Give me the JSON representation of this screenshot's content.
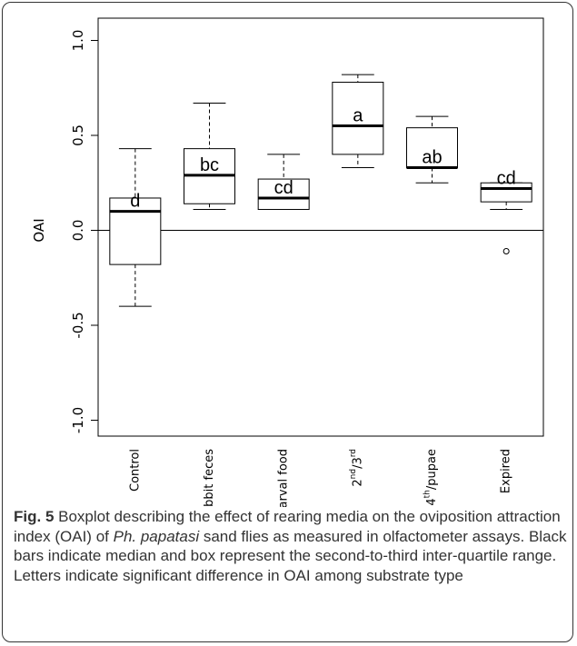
{
  "chart_data": {
    "type": "box",
    "ylabel": "OAI",
    "ylim": [
      -1.1,
      1.1
    ],
    "y_ticks": [
      "1.0",
      "0.5",
      "0.0",
      "-0.5",
      "-1.0"
    ],
    "y_tick_values": [
      1.0,
      0.5,
      0.0,
      -0.5,
      -1.0
    ],
    "reference_line_y": 0.0,
    "categories": [
      "Control",
      "Rabbit feces",
      "Larval food",
      "2nd/3rd",
      "4th/pupae",
      "Expired"
    ],
    "boxes": [
      {
        "category": "Control",
        "whisker_low": -0.4,
        "q1": -0.18,
        "median": 0.1,
        "q3": 0.17,
        "whisker_high": 0.43,
        "outliers": [],
        "letter": "d"
      },
      {
        "category": "Rabbit feces",
        "whisker_low": 0.11,
        "q1": 0.14,
        "median": 0.29,
        "q3": 0.43,
        "whisker_high": 0.67,
        "outliers": [],
        "letter": "bc"
      },
      {
        "category": "Larval food",
        "whisker_low": 0.11,
        "q1": 0.11,
        "median": 0.17,
        "q3": 0.27,
        "whisker_high": 0.4,
        "outliers": [],
        "letter": "cd"
      },
      {
        "category": "2nd/3rd",
        "whisker_low": 0.33,
        "q1": 0.4,
        "median": 0.55,
        "q3": 0.78,
        "whisker_high": 0.82,
        "outliers": [],
        "letter": "a"
      },
      {
        "category": "4th/pupae",
        "whisker_low": 0.25,
        "q1": 0.33,
        "median": 0.33,
        "q3": 0.54,
        "whisker_high": 0.6,
        "outliers": [],
        "letter": "ab"
      },
      {
        "category": "Expired",
        "whisker_low": 0.11,
        "q1": 0.15,
        "median": 0.22,
        "q3": 0.25,
        "whisker_high": 0.25,
        "outliers": [
          -0.11
        ],
        "letter": "cd"
      }
    ]
  },
  "caption": {
    "fig_label": "Fig. 5",
    "text_before_species": " Boxplot describing the effect of rearing media on the oviposition attraction index (OAI) of ",
    "species": "Ph. papatasi",
    "text_after_species": " sand flies as measured in olfactometer assays. Black bars indicate median and box represent the second-to-third inter-quartile range. Letters indicate significant difference in OAI among substrate type"
  }
}
